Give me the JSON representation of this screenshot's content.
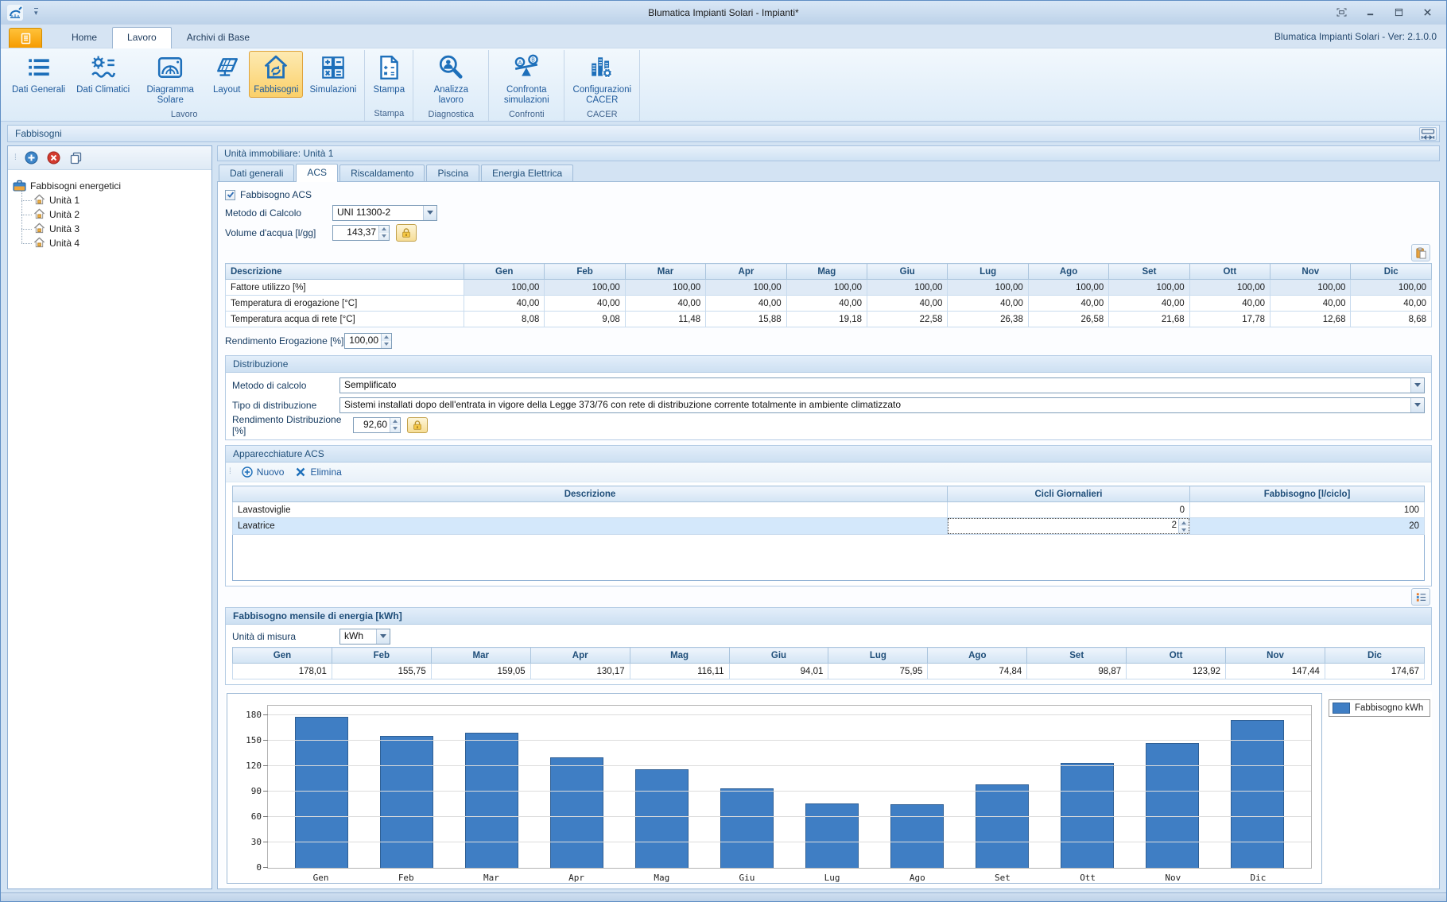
{
  "window": {
    "title": "Blumatica Impianti Solari - Impianti*",
    "version_label": "Blumatica Impianti Solari - Ver: 2.1.0.0"
  },
  "ribbon": {
    "tabs": [
      {
        "label": "Home",
        "active": false
      },
      {
        "label": "Lavoro",
        "active": true
      },
      {
        "label": "Archivi di Base",
        "active": false
      }
    ],
    "groups": [
      {
        "label": "Lavoro",
        "buttons": [
          {
            "label": "Dati Generali",
            "icon": "list-icon",
            "active": false
          },
          {
            "label": "Dati Climatici",
            "icon": "sun-waves-icon",
            "active": false
          },
          {
            "label": "Diagramma Solare",
            "icon": "solar-diagram-icon",
            "active": false
          },
          {
            "label": "Layout",
            "icon": "solar-panel-icon",
            "active": false
          },
          {
            "label": "Fabbisogni",
            "icon": "house-arrows-icon",
            "active": true
          },
          {
            "label": "Simulazioni",
            "icon": "calc-grid-icon",
            "active": false
          }
        ]
      },
      {
        "label": "Stampa",
        "buttons": [
          {
            "label": "Stampa",
            "icon": "print-doc-icon",
            "active": false
          }
        ]
      },
      {
        "label": "Diagnostica",
        "buttons": [
          {
            "label": "Analizza lavoro",
            "icon": "magnifier-user-icon",
            "active": false
          }
        ]
      },
      {
        "label": "Confronti",
        "buttons": [
          {
            "label": "Confronta simulazioni",
            "icon": "balance-icon",
            "active": false
          }
        ]
      },
      {
        "label": "CACER",
        "buttons": [
          {
            "label": "Configurazioni CACER",
            "icon": "buildings-gear-icon",
            "active": false
          }
        ]
      }
    ]
  },
  "panel_caption": "Fabbisogni",
  "tree": {
    "root": "Fabbisogni energetici",
    "items": [
      "Unità 1",
      "Unità 2",
      "Unità 3",
      "Unità 4"
    ]
  },
  "main": {
    "unit_header": "Unità immobiliare: Unità 1",
    "tabs": [
      {
        "label": "Dati generali",
        "active": false
      },
      {
        "label": "ACS",
        "active": true
      },
      {
        "label": "Riscaldamento",
        "active": false
      },
      {
        "label": "Piscina",
        "active": false
      },
      {
        "label": "Energia Elettrica",
        "active": false
      }
    ],
    "acs": {
      "checkbox_label": "Fabbisogno ACS",
      "metodo_label": "Metodo di Calcolo",
      "metodo_value": "UNI 11300-2",
      "volume_label": "Volume d'acqua [l/gg]",
      "volume_value": "143,37",
      "months": [
        "Gen",
        "Feb",
        "Mar",
        "Apr",
        "Mag",
        "Giu",
        "Lug",
        "Ago",
        "Set",
        "Ott",
        "Nov",
        "Dic"
      ],
      "month_table": {
        "desc_header": "Descrizione",
        "rows": [
          {
            "label": "Fattore utilizzo [%]",
            "values": [
              "100,00",
              "100,00",
              "100,00",
              "100,00",
              "100,00",
              "100,00",
              "100,00",
              "100,00",
              "100,00",
              "100,00",
              "100,00",
              "100,00"
            ],
            "shaded": true
          },
          {
            "label": "Temperatura di erogazione [°C]",
            "values": [
              "40,00",
              "40,00",
              "40,00",
              "40,00",
              "40,00",
              "40,00",
              "40,00",
              "40,00",
              "40,00",
              "40,00",
              "40,00",
              "40,00"
            ],
            "shaded": false
          },
          {
            "label": "Temperatura acqua di rete [°C]",
            "values": [
              "8,08",
              "9,08",
              "11,48",
              "15,88",
              "19,18",
              "22,58",
              "26,38",
              "26,58",
              "21,68",
              "17,78",
              "12,68",
              "8,68"
            ],
            "shaded": false
          }
        ]
      },
      "rendimento_erogazione_label": "Rendimento Erogazione [%]",
      "rendimento_erogazione_value": "100,00",
      "distribuzione": {
        "title": "Distribuzione",
        "metodo_label": "Metodo di calcolo",
        "metodo_value": "Semplificato",
        "tipo_label": "Tipo di distribuzione",
        "tipo_value": "Sistemi installati dopo dell'entrata in vigore della Legge 373/76 con rete di distribuzione corrente totalmente in ambiente climatizzato",
        "rendimento_label": "Rendimento Distribuzione [%]",
        "rendimento_value": "92,60"
      },
      "apparecchiature": {
        "title": "Apparecchiature ACS",
        "nuovo_label": "Nuovo",
        "elimina_label": "Elimina",
        "headers": [
          "Descrizione",
          "Cicli Giornalieri",
          "Fabbisogno [l/ciclo]"
        ],
        "rows": [
          {
            "descrizione": "Lavastoviglie",
            "cicli": "0",
            "fabbisogno": "100",
            "editing": false,
            "selected": false
          },
          {
            "descrizione": "Lavatrice",
            "cicli": "2",
            "fabbisogno": "20",
            "editing": true,
            "selected": true
          }
        ]
      },
      "fabbisogno_mensile": {
        "title": "Fabbisogno mensile di energia [kWh]",
        "unita_label": "Unità di misura",
        "unita_value": "kWh",
        "values": [
          "178,01",
          "155,75",
          "159,05",
          "130,17",
          "116,11",
          "94,01",
          "75,95",
          "74,84",
          "98,87",
          "123,92",
          "147,44",
          "174,67"
        ]
      }
    }
  },
  "chart_data": {
    "type": "bar",
    "categories": [
      "Gen",
      "Feb",
      "Mar",
      "Apr",
      "Mag",
      "Giu",
      "Lug",
      "Ago",
      "Set",
      "Ott",
      "Nov",
      "Dic"
    ],
    "values": [
      178.01,
      155.75,
      159.05,
      130.17,
      116.11,
      94.01,
      75.95,
      74.84,
      98.87,
      123.92,
      147.44,
      174.67
    ],
    "title": "",
    "xlabel": "",
    "ylabel": "",
    "ylim": [
      0,
      193
    ],
    "yticks": [
      0,
      30,
      60,
      90,
      120,
      150,
      180
    ],
    "legend": "Fabbisogno kWh",
    "legend_position": "top-right",
    "grid": true,
    "bar_color": "#3F7EC4"
  },
  "colors": {
    "accent_blue": "#1D6FBA",
    "bar_blue": "#3F7EC4",
    "ribbon_highlight": "#FBD069",
    "selection": "#D4E8FB",
    "header_text": "#1F4E79",
    "file_button_orange": "#F69B00"
  }
}
